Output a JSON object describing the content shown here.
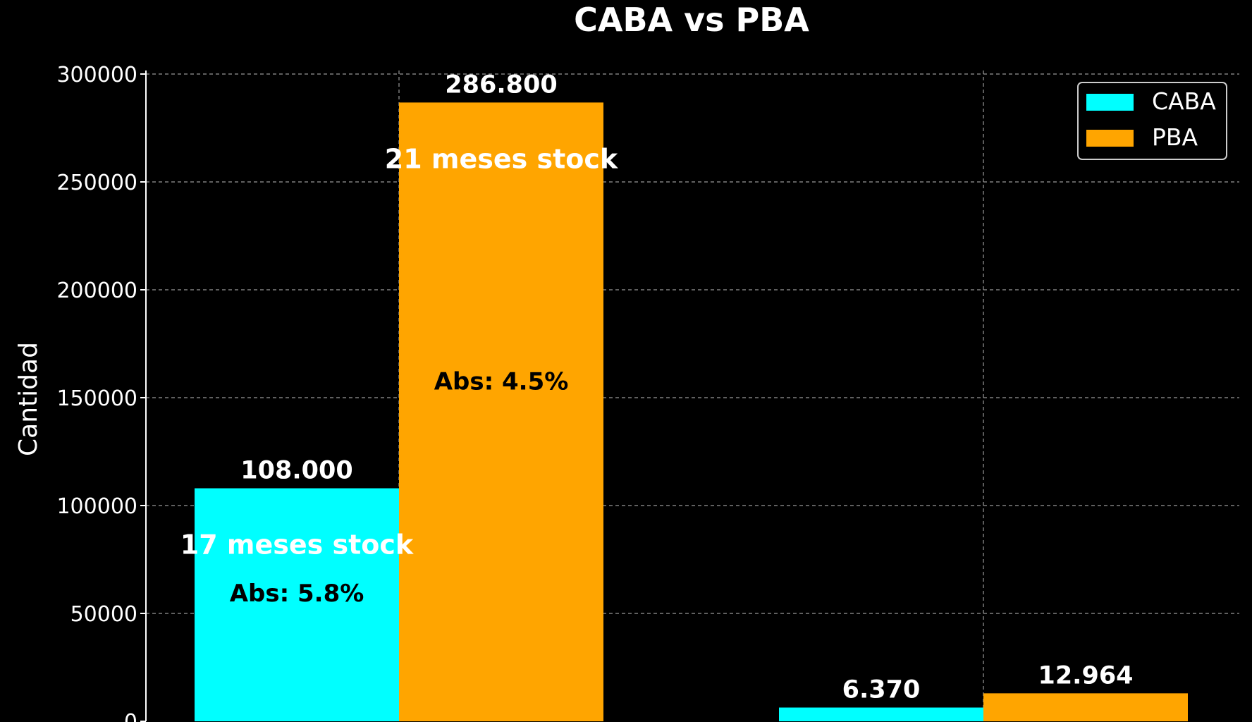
{
  "chart_data": {
    "type": "bar",
    "title": "CABA vs PBA",
    "xlabel": "",
    "ylabel": "Cantidad",
    "ylim": [
      0,
      300000
    ],
    "yticks": [
      "0",
      "50000",
      "100000",
      "150000",
      "200000",
      "250000",
      "300000"
    ],
    "grid": true,
    "legend_position": "top-right",
    "groups": 2,
    "series": [
      {
        "name": "CABA",
        "color": "#00FFFF",
        "values": [
          108000,
          6370
        ],
        "value_labels": [
          "108.000",
          "6.370"
        ],
        "stock_labels": [
          "17 meses stock",
          ""
        ],
        "abs_labels": [
          "Abs: 5.8%",
          ""
        ]
      },
      {
        "name": "PBA",
        "color": "#FFA500",
        "values": [
          286800,
          12964
        ],
        "value_labels": [
          "286.800",
          "12.964"
        ],
        "stock_labels": [
          "21 meses stock",
          ""
        ],
        "abs_labels": [
          "Abs: 4.5%",
          ""
        ]
      }
    ]
  }
}
